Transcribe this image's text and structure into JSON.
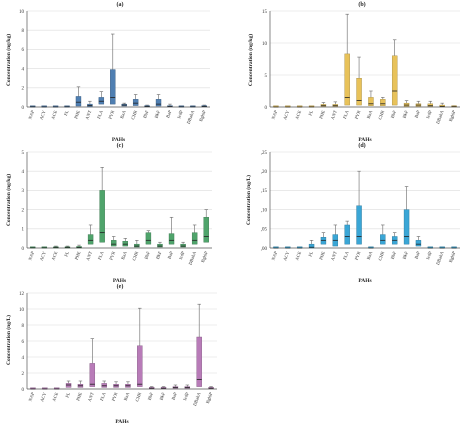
{
  "figure": {
    "x_axis_label": "PAHs",
    "categories": [
      "NAP",
      "ACY",
      "ACE",
      "FL",
      "PHE",
      "ANT",
      "FLA",
      "PYR",
      "BaA",
      "CHR",
      "BbF",
      "BkF",
      "BaP",
      "IcdP",
      "DBahA",
      "BghiP"
    ]
  },
  "chart_data": [
    {
      "type": "box",
      "title": "(a)",
      "ylabel": "Concentration (ng/kg)",
      "xlabel": "PAHs",
      "ylim": [
        0,
        10
      ],
      "yticks": [
        "0",
        "2",
        "4",
        "6",
        "8",
        "10"
      ],
      "color": "#4f7fb2",
      "grid": true,
      "categories": [
        "NAP",
        "ACY",
        "ACE",
        "FL",
        "PHE",
        "ANT",
        "FLA",
        "PYR",
        "BaA",
        "CHR",
        "BbF",
        "BkF",
        "BaP",
        "IcdP",
        "DBahA",
        "BghiP"
      ],
      "boxes": [
        {
          "q1": 0,
          "median": 0.02,
          "q3": 0.05,
          "min": 0,
          "max": 0.08
        },
        {
          "q1": 0,
          "median": 0.01,
          "q3": 0.03,
          "min": 0,
          "max": 0.05
        },
        {
          "q1": 0,
          "median": 0.01,
          "q3": 0.03,
          "min": 0,
          "max": 0.05
        },
        {
          "q1": 0,
          "median": 0.02,
          "q3": 0.05,
          "min": 0,
          "max": 0.08
        },
        {
          "q1": 0.1,
          "median": 0.5,
          "q3": 1.1,
          "min": 0,
          "max": 2.1
        },
        {
          "q1": 0.05,
          "median": 0.15,
          "q3": 0.3,
          "min": 0,
          "max": 0.6
        },
        {
          "q1": 0.3,
          "median": 0.6,
          "q3": 1.0,
          "min": 0,
          "max": 1.6
        },
        {
          "q1": 0.3,
          "median": 1.0,
          "q3": 3.9,
          "min": 0,
          "max": 7.6
        },
        {
          "q1": 0.1,
          "median": 0.2,
          "q3": 0.3,
          "min": 0,
          "max": 0.4
        },
        {
          "q1": 0.15,
          "median": 0.4,
          "q3": 0.8,
          "min": 0,
          "max": 1.3
        },
        {
          "q1": 0.02,
          "median": 0.05,
          "q3": 0.1,
          "min": 0,
          "max": 0.2
        },
        {
          "q1": 0.1,
          "median": 0.3,
          "q3": 0.8,
          "min": 0,
          "max": 1.3
        },
        {
          "q1": 0.02,
          "median": 0.05,
          "q3": 0.1,
          "min": 0,
          "max": 0.3
        },
        {
          "q1": 0,
          "median": 0.02,
          "q3": 0.05,
          "min": 0,
          "max": 0.1
        },
        {
          "q1": 0,
          "median": 0.02,
          "q3": 0.05,
          "min": 0,
          "max": 0.1
        },
        {
          "q1": 0.02,
          "median": 0.05,
          "q3": 0.1,
          "min": 0,
          "max": 0.2
        }
      ]
    },
    {
      "type": "box",
      "title": "(b)",
      "ylabel": "Concentration (ng/kg)",
      "xlabel": "PAHs",
      "ylim": [
        0,
        15
      ],
      "yticks": [
        "0",
        "5",
        "10",
        "15"
      ],
      "color": "#e8c25a",
      "grid": true,
      "categories": [
        "NAP",
        "ACY",
        "ACE",
        "FL",
        "PHE",
        "ANT",
        "FLA",
        "PYR",
        "BaA",
        "CHR",
        "BbF",
        "BkF",
        "BaP",
        "IcdP",
        "DBahA",
        "BghiP"
      ],
      "boxes": [
        {
          "q1": 0,
          "median": 0.01,
          "q3": 0.02,
          "min": 0,
          "max": 0.04
        },
        {
          "q1": 0,
          "median": 0.01,
          "q3": 0.02,
          "min": 0,
          "max": 0.04
        },
        {
          "q1": 0,
          "median": 0.01,
          "q3": 0.02,
          "min": 0,
          "max": 0.04
        },
        {
          "q1": 0,
          "median": 0.02,
          "q3": 0.05,
          "min": 0,
          "max": 0.1
        },
        {
          "q1": 0.1,
          "median": 0.2,
          "q3": 0.4,
          "min": 0,
          "max": 0.7
        },
        {
          "q1": 0.1,
          "median": 0.2,
          "q3": 0.4,
          "min": 0,
          "max": 0.8
        },
        {
          "q1": 0.3,
          "median": 1.5,
          "q3": 8.3,
          "min": 0,
          "max": 14.5
        },
        {
          "q1": 0.3,
          "median": 1.0,
          "q3": 4.5,
          "min": 0,
          "max": 7.8
        },
        {
          "q1": 0.2,
          "median": 0.5,
          "q3": 1.5,
          "min": 0,
          "max": 2.5
        },
        {
          "q1": 0.2,
          "median": 0.5,
          "q3": 1.2,
          "min": 0,
          "max": 1.5
        },
        {
          "q1": 0.3,
          "median": 2.5,
          "q3": 8.0,
          "min": 0,
          "max": 10.5
        },
        {
          "q1": 0.1,
          "median": 0.3,
          "q3": 0.6,
          "min": 0,
          "max": 1.0
        },
        {
          "q1": 0.1,
          "median": 0.3,
          "q3": 0.5,
          "min": 0,
          "max": 0.9
        },
        {
          "q1": 0.1,
          "median": 0.2,
          "q3": 0.5,
          "min": 0,
          "max": 0.9
        },
        {
          "q1": 0.05,
          "median": 0.1,
          "q3": 0.3,
          "min": 0,
          "max": 0.6
        },
        {
          "q1": 0.02,
          "median": 0.05,
          "q3": 0.1,
          "min": 0,
          "max": 0.2
        }
      ]
    },
    {
      "type": "box",
      "title": "(c)",
      "ylabel": "Concentration (ng/kg)",
      "xlabel": "PAHs",
      "ylim": [
        0,
        5
      ],
      "yticks": [
        "0",
        "1",
        "2",
        "3",
        "4",
        "5"
      ],
      "color": "#4fa46b",
      "grid": true,
      "categories": [
        "NAP",
        "ACY",
        "ACE",
        "FL",
        "PHE",
        "ANT",
        "FLA",
        "PYR",
        "BaA",
        "CHR",
        "BbF",
        "BkF",
        "BaP",
        "IcdP",
        "DBahA",
        "BghiP"
      ],
      "boxes": [
        {
          "q1": 0,
          "median": 0.01,
          "q3": 0.02,
          "min": 0,
          "max": 0.04
        },
        {
          "q1": 0,
          "median": 0.01,
          "q3": 0.02,
          "min": 0,
          "max": 0.04
        },
        {
          "q1": 0,
          "median": 0.02,
          "q3": 0.05,
          "min": 0,
          "max": 0.1
        },
        {
          "q1": 0,
          "median": 0.02,
          "q3": 0.05,
          "min": 0,
          "max": 0.1
        },
        {
          "q1": 0,
          "median": 0.03,
          "q3": 0.08,
          "min": 0,
          "max": 0.15
        },
        {
          "q1": 0.2,
          "median": 0.4,
          "q3": 0.7,
          "min": 0,
          "max": 1.2
        },
        {
          "q1": 0.3,
          "median": 0.8,
          "q3": 3.0,
          "min": 0,
          "max": 4.2
        },
        {
          "q1": 0.1,
          "median": 0.2,
          "q3": 0.4,
          "min": 0,
          "max": 0.6
        },
        {
          "q1": 0.1,
          "median": 0.2,
          "q3": 0.35,
          "min": 0,
          "max": 0.5
        },
        {
          "q1": 0.05,
          "median": 0.1,
          "q3": 0.2,
          "min": 0,
          "max": 0.4
        },
        {
          "q1": 0.2,
          "median": 0.4,
          "q3": 0.8,
          "min": 0,
          "max": 0.9
        },
        {
          "q1": 0.05,
          "median": 0.1,
          "q3": 0.2,
          "min": 0,
          "max": 0.3
        },
        {
          "q1": 0.2,
          "median": 0.4,
          "q3": 0.75,
          "min": 0,
          "max": 1.6
        },
        {
          "q1": 0.05,
          "median": 0.1,
          "q3": 0.2,
          "min": 0,
          "max": 0.3
        },
        {
          "q1": 0.2,
          "median": 0.4,
          "q3": 0.8,
          "min": 0,
          "max": 1.2
        },
        {
          "q1": 0.3,
          "median": 0.6,
          "q3": 1.6,
          "min": 0,
          "max": 2.0
        }
      ]
    },
    {
      "type": "box",
      "title": "(d)",
      "ylabel": "Concentration (ng/L)",
      "xlabel": "PAHs",
      "ylim": [
        0,
        0.25
      ],
      "yticks": [
        ",00",
        ",05",
        ",10",
        ",15",
        ",20",
        ",25"
      ],
      "color": "#3aa6d6",
      "grid": true,
      "categories": [
        "NAP",
        "ACY",
        "ACE",
        "FL",
        "PHE",
        "ANT",
        "FLA",
        "PYR",
        "BaA",
        "CHR",
        "BbF",
        "BkF",
        "BaP",
        "IcdP",
        "DBahA",
        "BghiP"
      ],
      "boxes": [
        {
          "q1": 0,
          "median": 0,
          "q3": 0,
          "min": 0,
          "max": 0
        },
        {
          "q1": 0,
          "median": 0,
          "q3": 0,
          "min": 0,
          "max": 0
        },
        {
          "q1": 0,
          "median": 0,
          "q3": 0,
          "min": 0,
          "max": 0
        },
        {
          "q1": 0,
          "median": 0.002,
          "q3": 0.01,
          "min": 0,
          "max": 0.02
        },
        {
          "q1": 0.01,
          "median": 0.02,
          "q3": 0.028,
          "min": 0,
          "max": 0.04
        },
        {
          "q1": 0.005,
          "median": 0.02,
          "q3": 0.035,
          "min": 0,
          "max": 0.06
        },
        {
          "q1": 0.01,
          "median": 0.03,
          "q3": 0.06,
          "min": 0,
          "max": 0.07
        },
        {
          "q1": 0.01,
          "median": 0.03,
          "q3": 0.11,
          "min": 0,
          "max": 0.2
        },
        {
          "q1": 0,
          "median": 0,
          "q3": 0,
          "min": 0,
          "max": 0
        },
        {
          "q1": 0.01,
          "median": 0.02,
          "q3": 0.035,
          "min": 0,
          "max": 0.06
        },
        {
          "q1": 0.01,
          "median": 0.02,
          "q3": 0.03,
          "min": 0,
          "max": 0.04
        },
        {
          "q1": 0.01,
          "median": 0.03,
          "q3": 0.1,
          "min": 0,
          "max": 0.16
        },
        {
          "q1": 0.005,
          "median": 0.01,
          "q3": 0.02,
          "min": 0,
          "max": 0.03
        },
        {
          "q1": 0,
          "median": 0,
          "q3": 0,
          "min": 0,
          "max": 0
        },
        {
          "q1": 0,
          "median": 0,
          "q3": 0,
          "min": 0,
          "max": 0
        },
        {
          "q1": 0,
          "median": 0,
          "q3": 0,
          "min": 0,
          "max": 0
        }
      ]
    },
    {
      "type": "box",
      "title": "(e)",
      "ylabel": "Concentration (ng/L)",
      "xlabel": "PAHs",
      "ylim": [
        0,
        12
      ],
      "yticks": [
        "0",
        "2",
        "4",
        "6",
        "8",
        "10",
        "12"
      ],
      "color": "#b87bb8",
      "grid": true,
      "categories": [
        "NAP",
        "ACY",
        "ACE",
        "FL",
        "PHE",
        "ANT",
        "FLA",
        "PYR",
        "BaA",
        "CHR",
        "BbF",
        "BkF",
        "BaP",
        "IcdP",
        "DBahA",
        "BghiP"
      ],
      "boxes": [
        {
          "q1": 0,
          "median": 0.01,
          "q3": 0.02,
          "min": 0,
          "max": 0.04
        },
        {
          "q1": 0,
          "median": 0.01,
          "q3": 0.02,
          "min": 0,
          "max": 0.04
        },
        {
          "q1": 0,
          "median": 0.01,
          "q3": 0.02,
          "min": 0,
          "max": 0.04
        },
        {
          "q1": 0.2,
          "median": 0.5,
          "q3": 0.7,
          "min": 0,
          "max": 1.0
        },
        {
          "q1": 0.2,
          "median": 0.4,
          "q3": 0.6,
          "min": 0,
          "max": 1.0
        },
        {
          "q1": 0.3,
          "median": 0.6,
          "q3": 3.2,
          "min": 0,
          "max": 6.3
        },
        {
          "q1": 0.2,
          "median": 0.4,
          "q3": 0.7,
          "min": 0,
          "max": 1.0
        },
        {
          "q1": 0.2,
          "median": 0.4,
          "q3": 0.6,
          "min": 0,
          "max": 0.9
        },
        {
          "q1": 0.2,
          "median": 0.4,
          "q3": 0.6,
          "min": 0,
          "max": 0.9
        },
        {
          "q1": 0.3,
          "median": 0.6,
          "q3": 5.4,
          "min": 0,
          "max": 10.1
        },
        {
          "q1": 0.05,
          "median": 0.1,
          "q3": 0.2,
          "min": 0,
          "max": 0.3
        },
        {
          "q1": 0.05,
          "median": 0.1,
          "q3": 0.2,
          "min": 0,
          "max": 0.3
        },
        {
          "q1": 0.1,
          "median": 0.2,
          "q3": 0.3,
          "min": 0,
          "max": 0.5
        },
        {
          "q1": 0.1,
          "median": 0.2,
          "q3": 0.3,
          "min": 0,
          "max": 0.5
        },
        {
          "q1": 0.3,
          "median": 1.2,
          "q3": 6.5,
          "min": 0,
          "max": 10.6
        },
        {
          "q1": 0.05,
          "median": 0.1,
          "q3": 0.2,
          "min": 0,
          "max": 0.3
        }
      ]
    }
  ]
}
